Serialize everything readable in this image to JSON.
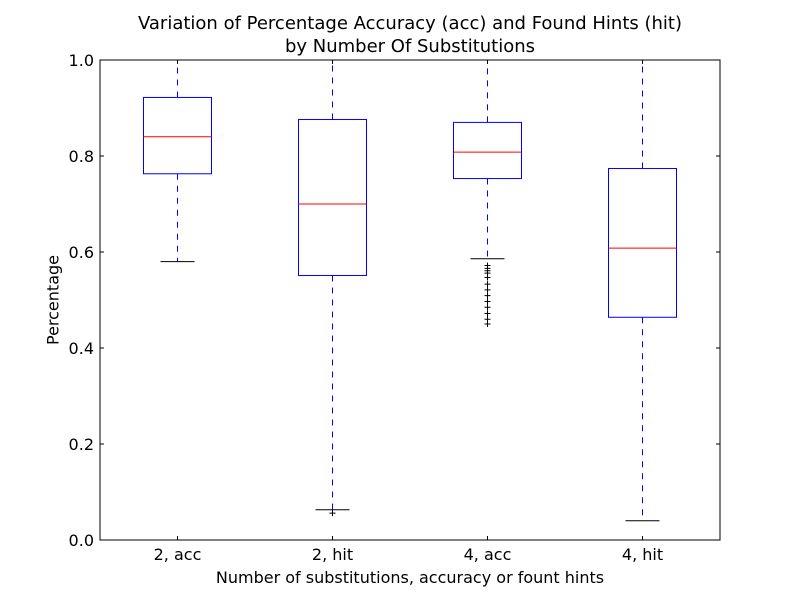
{
  "chart_data": {
    "type": "box",
    "title_line1": "Variation of Percentage Accuracy (acc) and Found Hints (hit)",
    "title_line2": "by Number Of Substitutions",
    "xlabel": "Number of substitutions, accuracy or fount hints",
    "ylabel": "Percentage",
    "ylim": [
      0.0,
      1.0
    ],
    "yticks": [
      "0.0",
      "0.2",
      "0.4",
      "0.6",
      "0.8",
      "1.0"
    ],
    "categories": [
      "2, acc",
      "2, hit",
      "4, acc",
      "4, hit"
    ],
    "boxes": [
      {
        "whisker_low": 0.58,
        "q1": 0.763,
        "median": 0.84,
        "q3": 0.922,
        "whisker_high": 1.0,
        "outliers": []
      },
      {
        "whisker_low": 0.063,
        "q1": 0.551,
        "median": 0.7,
        "q3": 0.876,
        "whisker_high": 1.0,
        "outliers": [
          0.056
        ]
      },
      {
        "whisker_low": 0.586,
        "q1": 0.753,
        "median": 0.808,
        "q3": 0.87,
        "whisker_high": 1.0,
        "outliers": [
          0.572,
          0.566,
          0.561,
          0.556,
          0.547,
          0.533,
          0.521,
          0.509,
          0.497,
          0.485,
          0.472,
          0.46,
          0.45
        ]
      },
      {
        "whisker_low": 0.04,
        "q1": 0.464,
        "median": 0.608,
        "q3": 0.774,
        "whisker_high": 1.0,
        "outliers": []
      }
    ],
    "colors": {
      "box": "#0000ff",
      "median": "#ff0000",
      "whisker": "#0000ff",
      "cap": "#000000",
      "outlier": "#000000"
    },
    "grid": false
  }
}
